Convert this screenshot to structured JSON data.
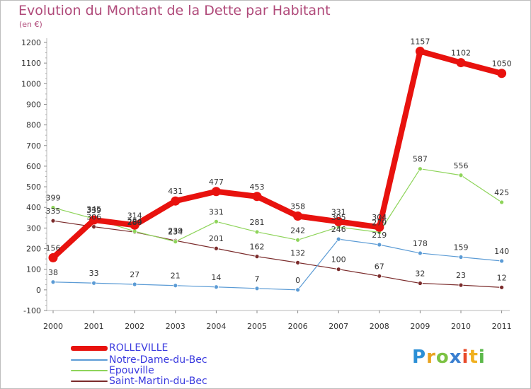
{
  "title": "Evolution du Montant de la Dette par Habitant",
  "subtitle": "(en €)",
  "logo": {
    "letters": [
      "P",
      "r",
      "o",
      "x",
      "i",
      "t",
      "i"
    ],
    "colors": [
      "#2b8fd6",
      "#e8a320",
      "#7cc243",
      "#3a7fd0",
      "#e84a2a",
      "#f0b020",
      "#5bb84a"
    ]
  },
  "chart_data": {
    "type": "line",
    "x": [
      "2000",
      "2001",
      "2002",
      "2003",
      "2004",
      "2005",
      "2006",
      "2007",
      "2008",
      "2009",
      "2010",
      "2011"
    ],
    "ylim": [
      -100,
      1200
    ],
    "yticks": [
      "-100",
      "0",
      "100",
      "200",
      "300",
      "400",
      "500",
      "600",
      "700",
      "800",
      "900",
      "1000",
      "1100",
      "1200"
    ],
    "grid": false,
    "legend_position": "bottom-left",
    "series": [
      {
        "name": "ROLLEVILLE",
        "color": "#e8120e",
        "values": [
          156,
          339,
          314,
          431,
          477,
          453,
          358,
          331,
          304,
          1157,
          1102,
          1050
        ],
        "labels": [
          "156",
          "339",
          "314",
          "431",
          "477",
          "453",
          "358",
          "331",
          "304",
          "1157",
          "1102",
          "1050"
        ]
      },
      {
        "name": "Notre-Dame-du-Bec",
        "color": "#5b9bd5",
        "values": [
          38,
          33,
          27,
          21,
          14,
          7,
          0,
          246,
          219,
          178,
          159,
          140
        ],
        "labels": [
          "38",
          "33",
          "27",
          "21",
          "14",
          "7",
          "0",
          "246",
          "219",
          "178",
          "159",
          "140"
        ]
      },
      {
        "name": "Epouville",
        "color": "#8ed45a",
        "values": [
          399,
          345,
          284,
          234,
          331,
          281,
          242,
          305,
          279,
          587,
          556,
          425
        ],
        "labels": [
          "399",
          "345",
          "284",
          "234",
          "331",
          "281",
          "242",
          "305",
          "279",
          "587",
          "556",
          "425"
        ]
      },
      {
        "name": "Saint-Martin-du-Bec",
        "color": "#7b2c2c",
        "values": [
          335,
          306,
          280,
          239,
          201,
          162,
          132,
          100,
          67,
          32,
          23,
          12
        ],
        "labels": [
          "335",
          "306",
          "280",
          "239",
          "201",
          "162",
          "132",
          "100",
          "67",
          "32",
          "23",
          "12"
        ]
      }
    ]
  }
}
